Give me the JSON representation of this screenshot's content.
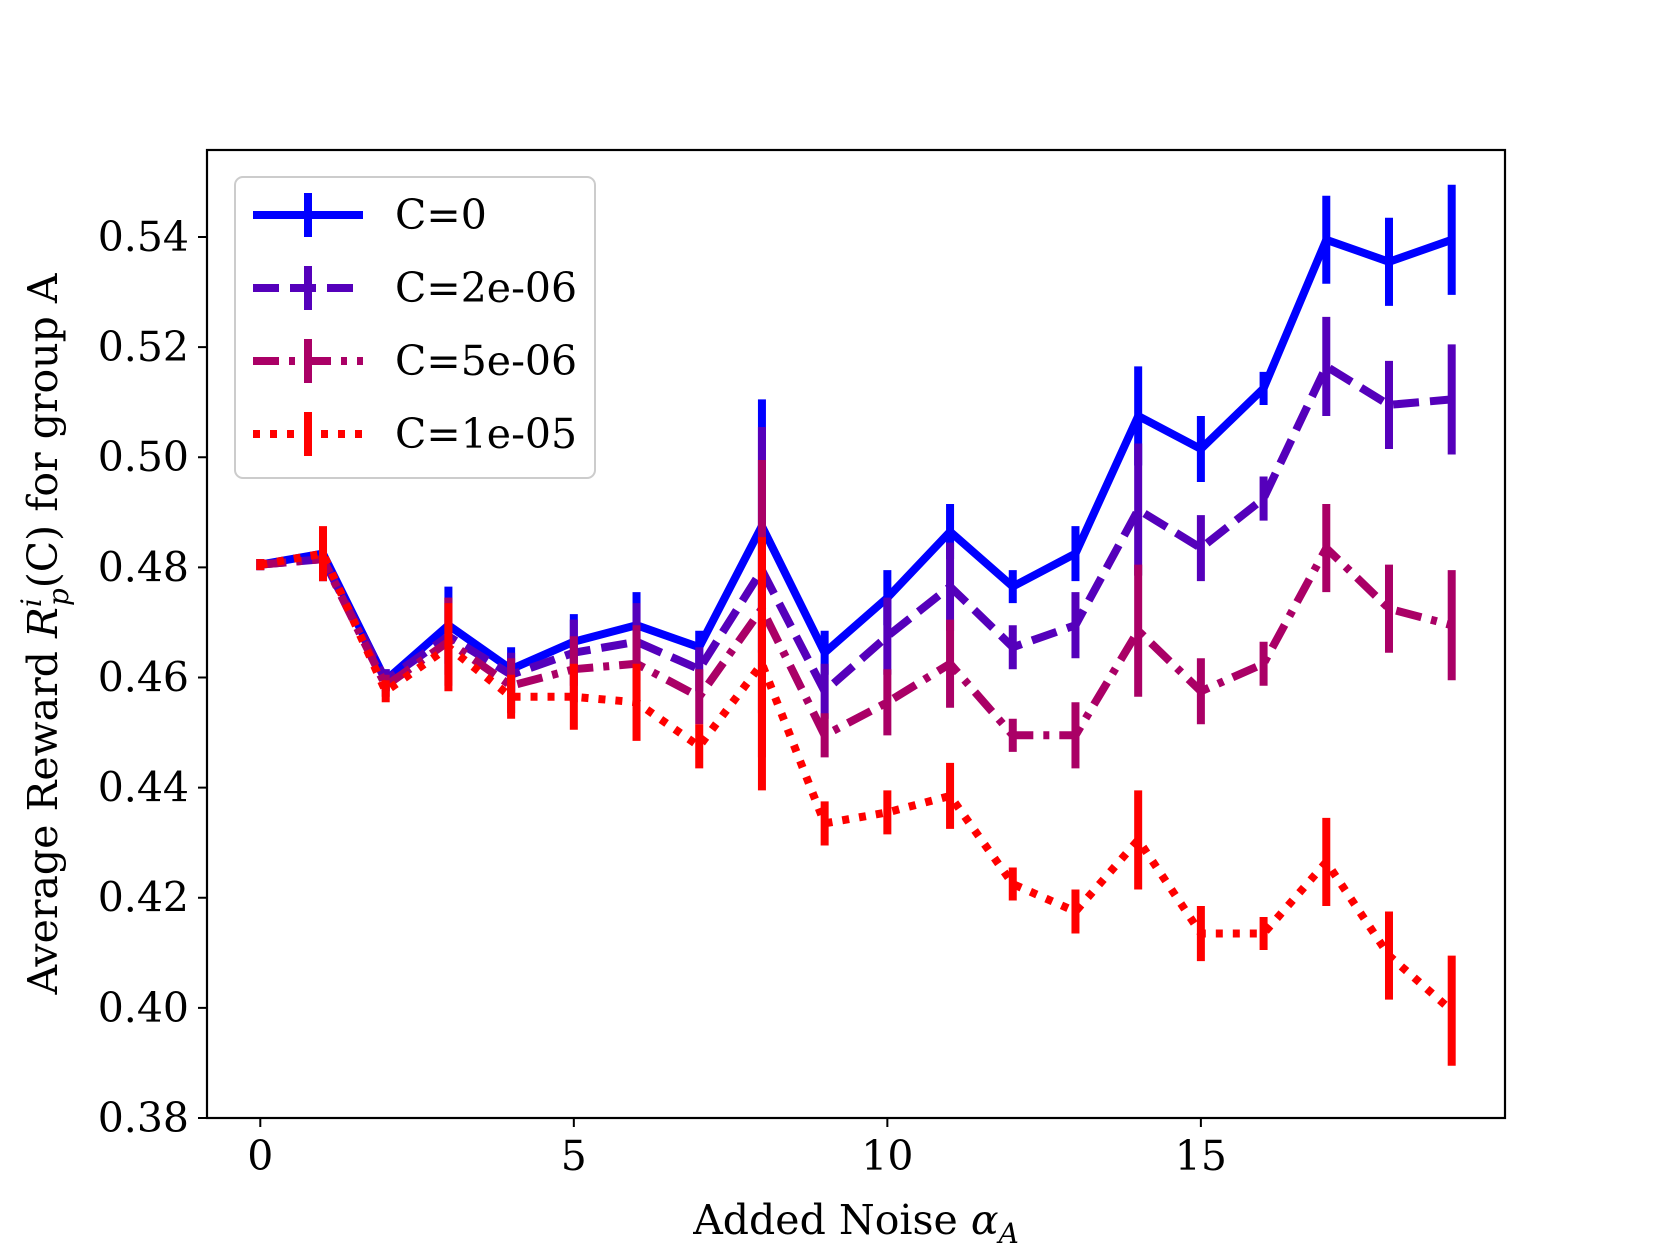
{
  "chart_data": {
    "type": "line",
    "title": "",
    "xlabel": "Added Noise",
    "xlabel_symbol": "α",
    "xlabel_subscript": "A",
    "ylabel_prefix": "Average Reward",
    "ylabel_symbol": "R",
    "ylabel_superscript": "i",
    "ylabel_subscript": "p",
    "ylabel_arg": "(C)",
    "ylabel_suffix": "for group A",
    "xlim": [
      -0.85,
      19.85
    ],
    "ylim": [
      0.38,
      0.5558
    ],
    "xticks": [
      0,
      5,
      10,
      15
    ],
    "xtick_labels": [
      "0",
      "5",
      "10",
      "15"
    ],
    "yticks": [
      0.38,
      0.4,
      0.42,
      0.44,
      0.46,
      0.48,
      0.5,
      0.52,
      0.54
    ],
    "ytick_labels": [
      "0.38",
      "0.40",
      "0.42",
      "0.44",
      "0.46",
      "0.48",
      "0.50",
      "0.52",
      "0.54"
    ],
    "grid": false,
    "legend_position": "top-left",
    "x": [
      0,
      1,
      2,
      3,
      4,
      5,
      6,
      7,
      8,
      9,
      10,
      11,
      12,
      13,
      14,
      15,
      16,
      17,
      18,
      19
    ],
    "series": [
      {
        "name": "C=0",
        "color": "#0000ff",
        "dash": "solid",
        "values": [
          0.4805,
          0.4825,
          0.4595,
          0.4695,
          0.4615,
          0.4665,
          0.4695,
          0.4655,
          0.4875,
          0.4645,
          0.4745,
          0.4865,
          0.4765,
          0.4825,
          0.5075,
          0.5015,
          0.5125,
          0.5395,
          0.5355,
          0.5395
        ],
        "errors": [
          0.001,
          0.003,
          0.002,
          0.007,
          0.004,
          0.005,
          0.006,
          0.003,
          0.023,
          0.004,
          0.005,
          0.005,
          0.003,
          0.005,
          0.009,
          0.006,
          0.003,
          0.008,
          0.008,
          0.01
        ]
      },
      {
        "name": "C=2e-06",
        "color": "#5500bb",
        "dash": "dashed",
        "values": [
          0.4805,
          0.4815,
          0.4595,
          0.4675,
          0.4605,
          0.4645,
          0.4665,
          0.4615,
          0.4795,
          0.4575,
          0.4675,
          0.4765,
          0.4655,
          0.4695,
          0.4905,
          0.4835,
          0.4925,
          0.5165,
          0.5095,
          0.5105
        ],
        "errors": [
          0.001,
          0.004,
          0.002,
          0.007,
          0.004,
          0.006,
          0.007,
          0.004,
          0.026,
          0.005,
          0.007,
          0.008,
          0.004,
          0.006,
          0.012,
          0.006,
          0.004,
          0.009,
          0.008,
          0.01
        ]
      },
      {
        "name": "C=5e-06",
        "color": "#aa0066",
        "dash": "dashdot",
        "values": [
          0.4805,
          0.4815,
          0.4585,
          0.4665,
          0.4585,
          0.4615,
          0.4625,
          0.4565,
          0.4725,
          0.4495,
          0.4555,
          0.4625,
          0.4495,
          0.4495,
          0.4685,
          0.4575,
          0.4625,
          0.4835,
          0.4725,
          0.4695
        ],
        "errors": [
          0.001,
          0.004,
          0.002,
          0.008,
          0.005,
          0.006,
          0.007,
          0.005,
          0.027,
          0.004,
          0.006,
          0.008,
          0.003,
          0.006,
          0.012,
          0.006,
          0.004,
          0.008,
          0.008,
          0.01
        ]
      },
      {
        "name": "C=1e-05",
        "color": "#ff0000",
        "dash": "dotted",
        "values": [
          0.4805,
          0.4825,
          0.4575,
          0.4655,
          0.4565,
          0.4565,
          0.4555,
          0.4475,
          0.4625,
          0.4335,
          0.4355,
          0.4385,
          0.4225,
          0.4175,
          0.4305,
          0.4135,
          0.4135,
          0.4265,
          0.4095,
          0.3995
        ],
        "errors": [
          0.001,
          0.005,
          0.002,
          0.008,
          0.004,
          0.006,
          0.007,
          0.004,
          0.023,
          0.004,
          0.004,
          0.006,
          0.003,
          0.004,
          0.009,
          0.005,
          0.003,
          0.008,
          0.008,
          0.01
        ]
      }
    ]
  }
}
